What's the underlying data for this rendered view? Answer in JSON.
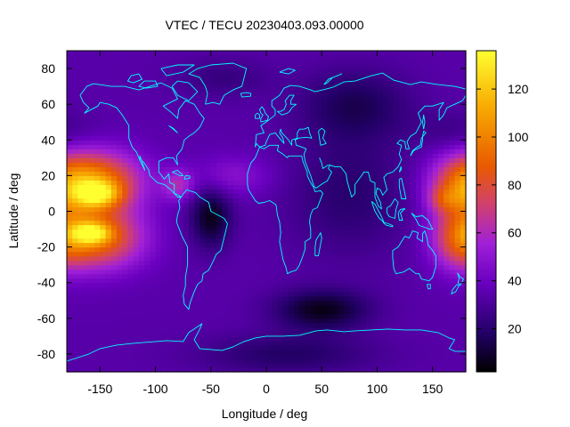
{
  "chart_data": {
    "type": "heatmap",
    "title": "VTEC / TECU 20230403.093.00000",
    "xlabel": "Longitude / deg",
    "ylabel": "Latitude / deg",
    "xlim": [
      -180,
      180
    ],
    "ylim": [
      -90,
      90
    ],
    "xticks": [
      -150,
      -100,
      -50,
      0,
      50,
      100,
      150
    ],
    "yticks": [
      -80,
      -60,
      -40,
      -20,
      0,
      20,
      40,
      60,
      80
    ],
    "colorbar": {
      "range": [
        2,
        136
      ],
      "ticks": [
        20,
        40,
        60,
        80,
        100,
        120
      ],
      "palette": [
        "#000000",
        "#220066",
        "#6a00c0",
        "#a020d8",
        "#d04070",
        "#e85a00",
        "#f8a800",
        "#ffff30"
      ],
      "palette_stops": [
        0,
        0.12,
        0.28,
        0.4,
        0.52,
        0.64,
        0.82,
        1
      ]
    },
    "grid": {
      "lon_step_deg": 5,
      "lat_step_deg": 2.5,
      "background_tecu": 34,
      "features": [
        {
          "name": "enhancement belt north Pacific",
          "lon": -150,
          "lat": 17,
          "sigma_lon": 28,
          "sigma_lat": 12,
          "tecu": 55
        },
        {
          "name": "enhancement belt south Pacific",
          "lon": -150,
          "lat": -15,
          "sigma_lon": 28,
          "sigma_lat": 12,
          "tecu": 55
        },
        {
          "name": "peak north Pacific",
          "lon": -152,
          "lat": 10,
          "sigma_lon": 14,
          "sigma_lat": 5,
          "tecu": 50
        },
        {
          "name": "peak south Pacific",
          "lon": -158,
          "lat": -12,
          "sigma_lon": 12,
          "sigma_lat": 4,
          "tecu": 52
        },
        {
          "name": "enhancement west Pacific north",
          "lon": 178,
          "lat": 15,
          "sigma_lon": 22,
          "sigma_lat": 12,
          "tecu": 45
        },
        {
          "name": "enhancement west Pacific south",
          "lon": 175,
          "lat": -15,
          "sigma_lon": 18,
          "sigma_lat": 12,
          "tecu": 40
        },
        {
          "name": "peak west Pacific",
          "lon": 160,
          "lat": 7,
          "sigma_lon": 10,
          "sigma_lat": 5,
          "tecu": 20
        },
        {
          "name": "Caribbean enhancement",
          "lon": -80,
          "lat": 15,
          "sigma_lon": 10,
          "sigma_lat": 6,
          "tecu": 25
        },
        {
          "name": "Atlantic enhancement",
          "lon": -30,
          "lat": 20,
          "sigma_lon": 25,
          "sigma_lat": 8,
          "tecu": 15
        },
        {
          "name": "Brazil depletion",
          "lon": -50,
          "lat": -3,
          "sigma_lon": 13,
          "sigma_lat": 12,
          "tecu": -28
        },
        {
          "name": "Africa-Indian Ocean depletion",
          "lon": 75,
          "lat": 10,
          "sigma_lon": 40,
          "sigma_lat": 25,
          "tecu": -14
        },
        {
          "name": "Siberia depletion",
          "lon": 80,
          "lat": 60,
          "sigma_lon": 35,
          "sigma_lat": 14,
          "tecu": -18
        },
        {
          "name": "Southern Ocean depletion",
          "lon": 50,
          "lat": -55,
          "sigma_lon": 30,
          "sigma_lat": 8,
          "tecu": -28
        },
        {
          "name": "Antarctic depletion",
          "lon": 20,
          "lat": -80,
          "sigma_lon": 55,
          "sigma_lat": 8,
          "tecu": -16
        },
        {
          "name": "Greenland depletion",
          "lon": -40,
          "lat": 75,
          "sigma_lon": 30,
          "sigma_lat": 8,
          "tecu": -10
        },
        {
          "name": "North Pacific depletion",
          "lon": 170,
          "lat": 45,
          "sigma_lon": 25,
          "sigma_lat": 8,
          "tecu": -8
        }
      ]
    },
    "overlay": "coastlines",
    "coastline_color": "#00ffff"
  }
}
